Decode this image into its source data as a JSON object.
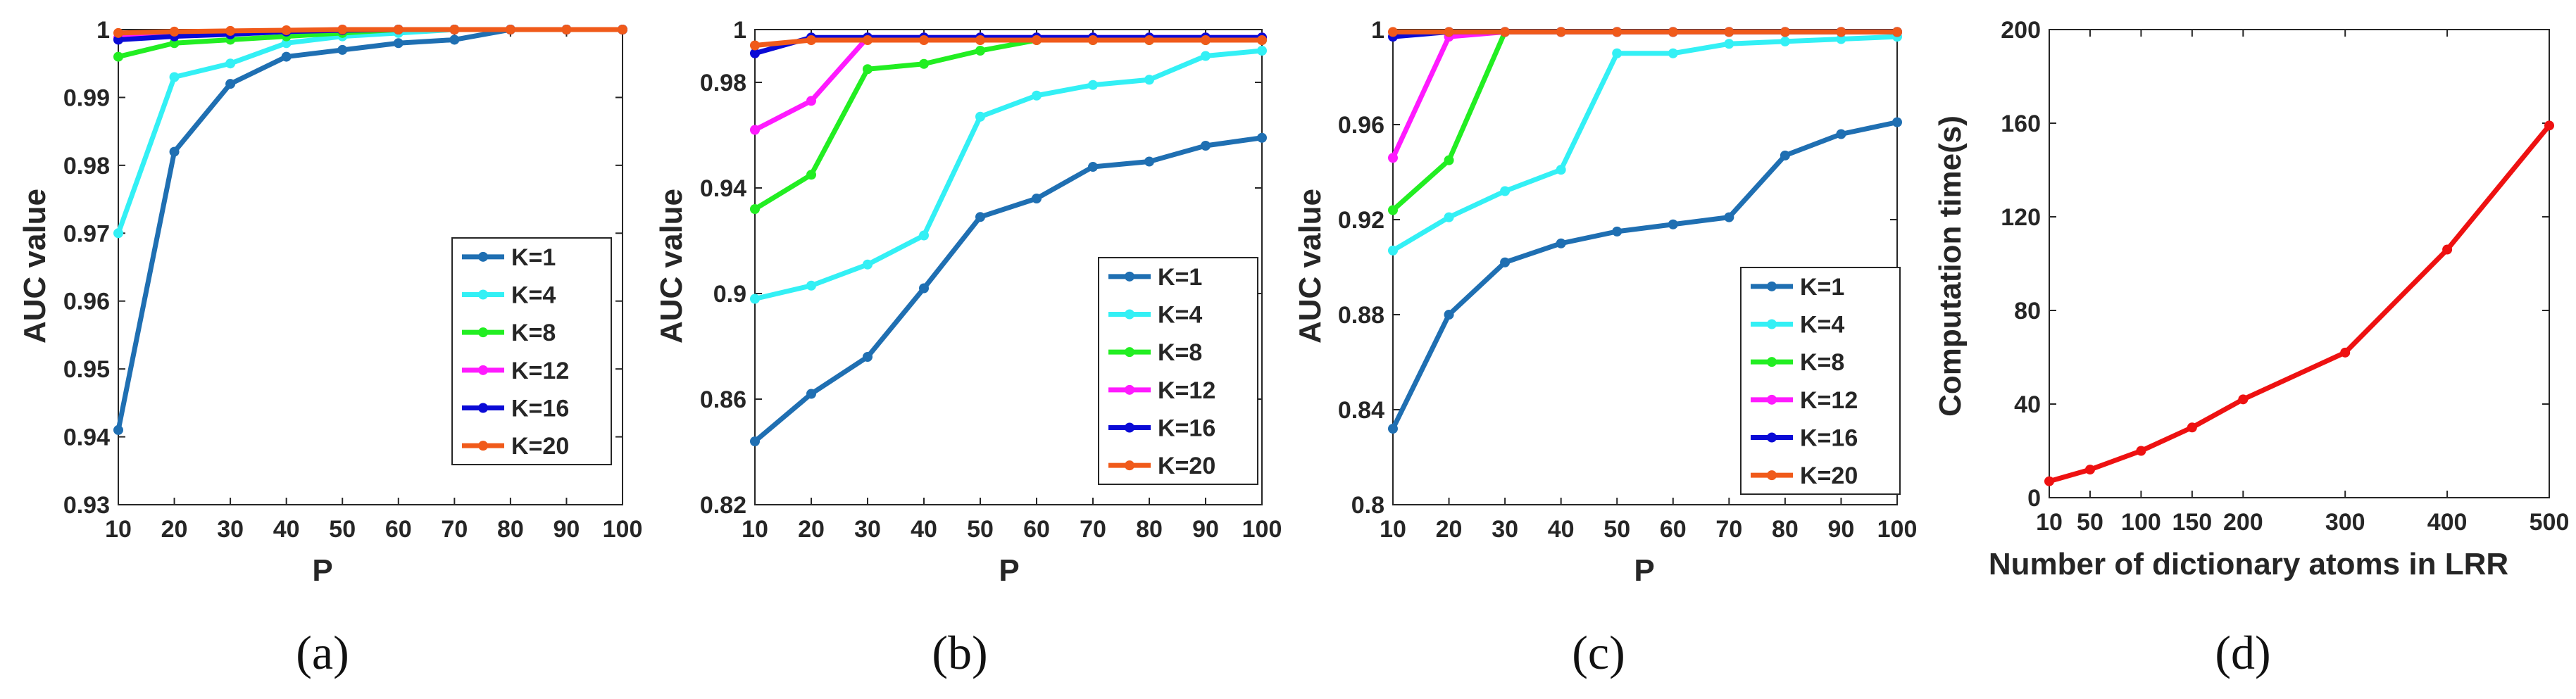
{
  "figure": {
    "captions": [
      "(a)",
      "(b)",
      "(c)",
      "(d)"
    ]
  },
  "chart_data": [
    {
      "type": "line",
      "id": "a",
      "xlabel": "P",
      "ylabel": "AUC value",
      "x": [
        10,
        20,
        30,
        40,
        50,
        60,
        70,
        80,
        90,
        100
      ],
      "xlim": [
        10,
        100
      ],
      "ylim": [
        0.93,
        1.0
      ],
      "xticks": [
        10,
        20,
        30,
        40,
        50,
        60,
        70,
        80,
        90,
        100
      ],
      "yticks": [
        0.93,
        0.94,
        0.95,
        0.96,
        0.97,
        0.98,
        0.99,
        1
      ],
      "ytick_labels": [
        "0.93",
        "0.94",
        "0.95",
        "0.96",
        "0.97",
        "0.98",
        "0.99",
        "1"
      ],
      "legend_position": "lower-right",
      "series": [
        {
          "name": "K=1",
          "color": "#1f6fb2",
          "values": [
            0.941,
            0.982,
            0.992,
            0.996,
            0.997,
            0.998,
            0.9985,
            1.0,
            1.0,
            1.0
          ]
        },
        {
          "name": "K=4",
          "color": "#33f0f5",
          "values": [
            0.97,
            0.993,
            0.995,
            0.998,
            0.999,
            0.9995,
            1.0,
            1.0,
            1.0,
            1.0
          ]
        },
        {
          "name": "K=8",
          "color": "#22ee22",
          "values": [
            0.996,
            0.998,
            0.9985,
            0.999,
            0.9995,
            1.0,
            1.0,
            1.0,
            1.0,
            1.0
          ]
        },
        {
          "name": "K=12",
          "color": "#ff1aff",
          "values": [
            0.9988,
            0.9992,
            0.9995,
            0.9998,
            1.0,
            1.0,
            1.0,
            1.0,
            1.0,
            1.0
          ]
        },
        {
          "name": "K=16",
          "color": "#0a0ad6",
          "values": [
            0.9985,
            0.999,
            0.9993,
            0.9997,
            0.9999,
            1.0,
            1.0,
            1.0,
            1.0,
            1.0
          ]
        },
        {
          "name": "K=20",
          "color": "#f05a1a",
          "values": [
            0.9995,
            0.9997,
            0.9998,
            0.9999,
            1.0,
            1.0,
            1.0,
            1.0,
            1.0,
            1.0
          ]
        }
      ]
    },
    {
      "type": "line",
      "id": "b",
      "xlabel": "P",
      "ylabel": "AUC value",
      "x": [
        10,
        20,
        30,
        40,
        50,
        60,
        70,
        80,
        90,
        100
      ],
      "xlim": [
        10,
        100
      ],
      "ylim": [
        0.82,
        1.0
      ],
      "xticks": [
        10,
        20,
        30,
        40,
        50,
        60,
        70,
        80,
        90,
        100
      ],
      "yticks": [
        0.82,
        0.86,
        0.9,
        0.94,
        0.98,
        1
      ],
      "ytick_labels": [
        "0.82",
        "0.86",
        "0.9",
        "0.94",
        "0.98",
        "1"
      ],
      "legend_position": "lower-right",
      "series": [
        {
          "name": "K=1",
          "color": "#1f6fb2",
          "values": [
            0.844,
            0.862,
            0.876,
            0.902,
            0.929,
            0.936,
            0.948,
            0.95,
            0.956,
            0.959
          ]
        },
        {
          "name": "K=4",
          "color": "#33f0f5",
          "values": [
            0.898,
            0.903,
            0.911,
            0.922,
            0.967,
            0.975,
            0.979,
            0.981,
            0.99,
            0.992
          ]
        },
        {
          "name": "K=8",
          "color": "#22ee22",
          "values": [
            0.932,
            0.945,
            0.985,
            0.987,
            0.992,
            0.996,
            0.996,
            0.996,
            0.996,
            0.996
          ]
        },
        {
          "name": "K=12",
          "color": "#ff1aff",
          "values": [
            0.962,
            0.973,
            0.997,
            0.997,
            0.997,
            0.997,
            0.997,
            0.997,
            0.997,
            0.997
          ]
        },
        {
          "name": "K=16",
          "color": "#0a0ad6",
          "values": [
            0.991,
            0.997,
            0.997,
            0.997,
            0.997,
            0.997,
            0.997,
            0.997,
            0.997,
            0.997
          ]
        },
        {
          "name": "K=20",
          "color": "#f05a1a",
          "values": [
            0.994,
            0.996,
            0.996,
            0.996,
            0.996,
            0.996,
            0.996,
            0.996,
            0.996,
            0.996
          ]
        }
      ]
    },
    {
      "type": "line",
      "id": "c",
      "xlabel": "P",
      "ylabel": "AUC value",
      "x": [
        10,
        20,
        30,
        40,
        50,
        60,
        70,
        80,
        90,
        100
      ],
      "xlim": [
        10,
        100
      ],
      "ylim": [
        0.8,
        1.0
      ],
      "xticks": [
        10,
        20,
        30,
        40,
        50,
        60,
        70,
        80,
        90,
        100
      ],
      "yticks": [
        0.8,
        0.84,
        0.88,
        0.92,
        0.96,
        1
      ],
      "ytick_labels": [
        "0.8",
        "0.84",
        "0.88",
        "0.92",
        "0.96",
        "1"
      ],
      "legend_position": "lower-right",
      "series": [
        {
          "name": "K=1",
          "color": "#1f6fb2",
          "values": [
            0.832,
            0.88,
            0.902,
            0.91,
            0.915,
            0.918,
            0.921,
            0.947,
            0.956,
            0.961
          ]
        },
        {
          "name": "K=4",
          "color": "#33f0f5",
          "values": [
            0.907,
            0.921,
            0.932,
            0.941,
            0.99,
            0.99,
            0.994,
            0.995,
            0.996,
            0.997
          ]
        },
        {
          "name": "K=8",
          "color": "#22ee22",
          "values": [
            0.924,
            0.945,
            0.999,
            0.999,
            0.999,
            0.999,
            0.999,
            0.999,
            0.999,
            0.999
          ]
        },
        {
          "name": "K=12",
          "color": "#ff1aff",
          "values": [
            0.946,
            0.997,
            0.999,
            0.999,
            0.999,
            0.999,
            0.999,
            0.999,
            0.999,
            0.999
          ]
        },
        {
          "name": "K=16",
          "color": "#0a0ad6",
          "values": [
            0.997,
            0.999,
            0.999,
            0.999,
            0.999,
            0.999,
            0.999,
            0.999,
            0.999,
            0.999
          ]
        },
        {
          "name": "K=20",
          "color": "#f05a1a",
          "values": [
            0.999,
            0.999,
            0.999,
            0.999,
            0.999,
            0.999,
            0.999,
            0.999,
            0.999,
            0.999
          ]
        }
      ]
    },
    {
      "type": "line",
      "id": "d",
      "xlabel": "Number of dictionary atoms in LRR",
      "ylabel": "Computation time(s)",
      "x": [
        10,
        50,
        100,
        150,
        200,
        300,
        400,
        500
      ],
      "xlim": [
        10,
        500
      ],
      "ylim": [
        0,
        200
      ],
      "xticks": [
        10,
        50,
        100,
        150,
        200,
        300,
        400,
        500
      ],
      "yticks": [
        0,
        40,
        80,
        120,
        160,
        200
      ],
      "ytick_labels": [
        "0",
        "40",
        "80",
        "120",
        "160",
        "200"
      ],
      "series": [
        {
          "color": "#ee1111",
          "values": [
            7,
            12,
            20,
            30,
            42,
            62,
            106,
            159
          ]
        }
      ]
    }
  ]
}
